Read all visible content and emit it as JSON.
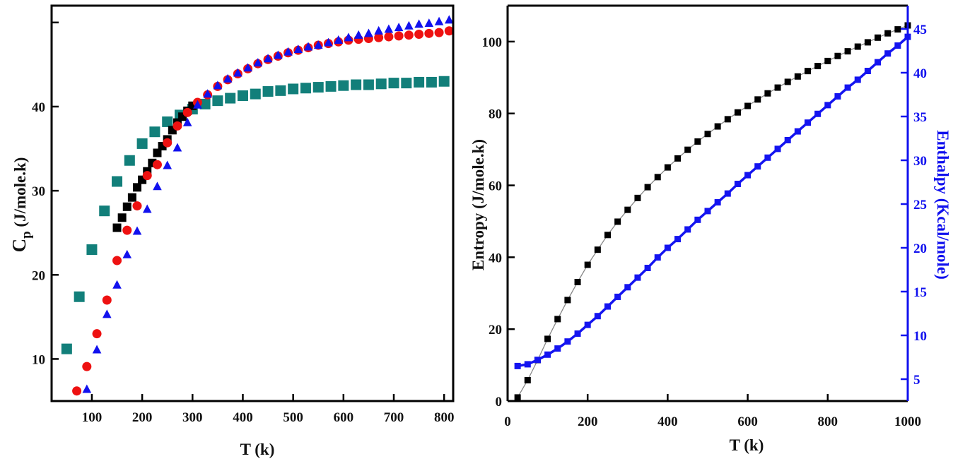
{
  "chart_data": [
    {
      "type": "scatter",
      "panel": "left",
      "xlabel": "T (k)",
      "ylabel_main": "C",
      "ylabel_sub": "p",
      "ylabel_rest": " (J/mole.k)",
      "xlim": [
        20,
        818
      ],
      "ylim": [
        5,
        52
      ],
      "xticks": [
        100,
        200,
        300,
        400,
        500,
        600,
        700,
        800
      ],
      "xtick_labels": [
        "100",
        "200",
        "300",
        "400",
        "500",
        "600",
        "700",
        "800"
      ],
      "yticks": [
        10,
        20,
        30,
        40,
        50
      ],
      "ytick_labels": [
        "10",
        "20",
        "30",
        "40",
        ""
      ],
      "grid": false,
      "series": [
        {
          "name": "black squares",
          "marker": "square",
          "color": "#000000",
          "x": [
            150,
            160,
            170,
            180,
            190,
            200,
            210,
            220,
            230,
            240,
            250,
            260,
            270,
            280,
            290,
            300
          ],
          "y": [
            25.6,
            26.8,
            28.1,
            29.2,
            30.4,
            31.3,
            32.3,
            33.3,
            34.5,
            35.3,
            36.1,
            37.2,
            38.1,
            38.8,
            39.5,
            40.1
          ]
        },
        {
          "name": "red circles",
          "marker": "circle",
          "color": "#ee1111",
          "x": [
            70,
            90,
            110,
            130,
            150,
            170,
            190,
            210,
            230,
            250,
            270,
            290,
            310,
            330,
            350,
            370,
            390,
            410,
            430,
            450,
            470,
            490,
            510,
            530,
            550,
            570,
            590,
            610,
            630,
            650,
            670,
            690,
            710,
            730,
            750,
            770,
            790,
            810
          ],
          "y": [
            6.2,
            9.1,
            13.0,
            17.0,
            21.7,
            25.3,
            28.2,
            31.8,
            33.1,
            35.7,
            37.7,
            39.3,
            40.5,
            41.4,
            42.4,
            43.2,
            43.9,
            44.5,
            45.1,
            45.6,
            46.0,
            46.4,
            46.7,
            47.0,
            47.3,
            47.5,
            47.7,
            47.9,
            48.0,
            48.1,
            48.2,
            48.3,
            48.4,
            48.5,
            48.6,
            48.7,
            48.8,
            49.0
          ]
        },
        {
          "name": "blue triangles",
          "marker": "triangle",
          "color": "#1111ee",
          "x": [
            90,
            110,
            130,
            150,
            170,
            190,
            210,
            230,
            250,
            270,
            290,
            310,
            330,
            350,
            370,
            390,
            410,
            430,
            450,
            470,
            490,
            510,
            530,
            550,
            570,
            590,
            610,
            630,
            650,
            670,
            690,
            710,
            730,
            750,
            770,
            790,
            810
          ],
          "y": [
            6.4,
            11.1,
            15.3,
            18.8,
            22.4,
            25.2,
            27.8,
            30.5,
            33.0,
            35.1,
            38.1,
            40.2,
            41.5,
            42.5,
            43.3,
            44.0,
            44.6,
            45.2,
            45.7,
            46.1,
            46.5,
            46.8,
            47.1,
            47.3,
            47.6,
            47.9,
            48.2,
            48.5,
            48.7,
            49.0,
            49.2,
            49.4,
            49.6,
            49.8,
            49.9,
            50.1,
            50.3
          ]
        },
        {
          "name": "teal squares",
          "marker": "square",
          "color": "#127f7a",
          "x": [
            50,
            75,
            100,
            125,
            150,
            175,
            200,
            225,
            250,
            275,
            300,
            325,
            350,
            375,
            400,
            425,
            450,
            475,
            500,
            525,
            550,
            575,
            600,
            625,
            650,
            675,
            700,
            725,
            750,
            775,
            800
          ],
          "y": [
            11.2,
            17.4,
            23.0,
            27.6,
            31.1,
            33.6,
            35.6,
            37.0,
            38.2,
            39.0,
            39.7,
            40.3,
            40.7,
            41.0,
            41.3,
            41.5,
            41.8,
            41.9,
            42.1,
            42.2,
            42.3,
            42.4,
            42.5,
            42.6,
            42.6,
            42.7,
            42.8,
            42.8,
            42.9,
            42.9,
            43.0
          ]
        }
      ]
    },
    {
      "type": "line",
      "panel": "right",
      "xlabel": "T (k)",
      "ylabel_left": "Entropy (J/mole.k)",
      "ylabel_right": "Enthalpy (Kcal/mole)",
      "xlim": [
        0,
        1000
      ],
      "ylim_left": [
        0,
        110
      ],
      "ylim_right": [
        2.5,
        47
      ],
      "xticks": [
        0,
        200,
        400,
        600,
        800,
        1000
      ],
      "xtick_labels": [
        "0",
        "200",
        "400",
        "600",
        "800",
        "1000"
      ],
      "yticks_left": [
        0,
        20,
        40,
        60,
        80,
        100
      ],
      "ytick_labels_left": [
        "0",
        "20",
        "40",
        "60",
        "80",
        "100"
      ],
      "yticks_right": [
        5,
        10,
        15,
        20,
        25,
        30,
        35,
        40,
        45
      ],
      "ytick_labels_right": [
        "5",
        "10",
        "15",
        "20",
        "25",
        "30",
        "35",
        "40",
        "45"
      ],
      "grid": false,
      "series": [
        {
          "name": "Entropy",
          "axis": "left",
          "marker": "square",
          "color": "#000000",
          "line_color": "#888888",
          "x": [
            25,
            50,
            75,
            100,
            125,
            150,
            175,
            200,
            225,
            250,
            275,
            300,
            325,
            350,
            375,
            400,
            425,
            450,
            475,
            500,
            525,
            550,
            575,
            600,
            625,
            650,
            675,
            700,
            725,
            750,
            775,
            800,
            825,
            850,
            875,
            900,
            925,
            950,
            975,
            1000
          ],
          "y": [
            1.0,
            5.8,
            11.4,
            17.3,
            22.8,
            28.1,
            33.1,
            37.9,
            42.1,
            46.2,
            49.9,
            53.2,
            56.5,
            59.5,
            62.3,
            65.0,
            67.5,
            69.9,
            72.2,
            74.3,
            76.4,
            78.4,
            80.3,
            82.1,
            83.9,
            85.6,
            87.2,
            88.8,
            90.3,
            91.8,
            93.2,
            94.6,
            96.0,
            97.3,
            98.6,
            99.8,
            101.1,
            102.3,
            103.4,
            104.5
          ]
        },
        {
          "name": "Enthalpy",
          "axis": "right",
          "marker": "square",
          "color": "#1414f0",
          "x": [
            25,
            50,
            75,
            100,
            125,
            150,
            175,
            200,
            225,
            250,
            275,
            300,
            325,
            350,
            375,
            400,
            425,
            450,
            475,
            500,
            525,
            550,
            575,
            600,
            625,
            650,
            675,
            700,
            725,
            750,
            775,
            800,
            825,
            850,
            875,
            900,
            925,
            950,
            975,
            1000
          ],
          "y": [
            6.5,
            6.7,
            7.2,
            7.8,
            8.5,
            9.3,
            10.2,
            11.2,
            12.2,
            13.3,
            14.4,
            15.5,
            16.6,
            17.7,
            18.9,
            20.0,
            21.0,
            22.1,
            23.2,
            24.2,
            25.2,
            26.2,
            27.3,
            28.3,
            29.3,
            30.3,
            31.3,
            32.3,
            33.3,
            34.3,
            35.3,
            36.3,
            37.3,
            38.3,
            39.2,
            40.2,
            41.2,
            42.2,
            43.1,
            44.1
          ]
        }
      ]
    }
  ]
}
